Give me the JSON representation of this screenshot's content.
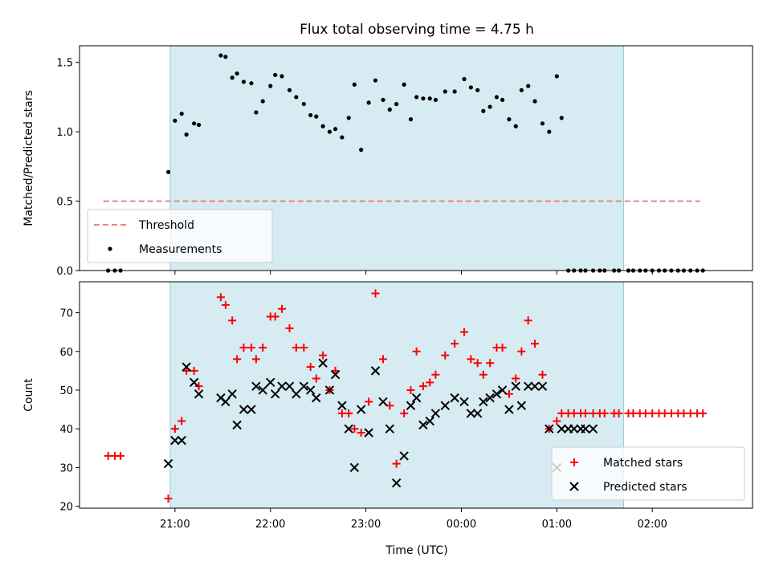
{
  "chart_data": {
    "title": "Flux total observing time = 4.75 h",
    "xlabel": "Time (UTC)",
    "x_ticks": [
      "21:00",
      "22:00",
      "23:00",
      "00:00",
      "01:00",
      "02:00"
    ],
    "x_tick_hours": [
      21,
      22,
      23,
      24,
      25,
      26
    ],
    "xlim": [
      20.0,
      27.05
    ],
    "observing_window": [
      20.95,
      25.7
    ],
    "colors": {
      "window": "#add8e6",
      "threshold": "#f08080",
      "measurements": "#000000",
      "matched": "#ff0000",
      "predicted": "#000000"
    },
    "panels": [
      {
        "type": "scatter",
        "ylabel": "Matched/Predicted stars",
        "ylim": [
          0,
          1.62
        ],
        "y_ticks": [
          0.0,
          0.5,
          1.0,
          1.5
        ],
        "y_tick_labels": [
          "0.0",
          "0.5",
          "1.0",
          "1.5"
        ],
        "legend": {
          "location": "lower-left",
          "entries": [
            "Threshold",
            "Measurements"
          ]
        },
        "threshold": {
          "name": "Threshold",
          "x": [
            20.25,
            26.5
          ],
          "y": 0.5
        },
        "series": [
          {
            "name": "Measurements",
            "x": [
              20.3,
              20.37,
              20.43,
              20.93,
              21.0,
              21.07,
              21.12,
              21.2,
              21.25,
              21.48,
              21.53,
              21.6,
              21.65,
              21.72,
              21.8,
              21.85,
              21.92,
              22.0,
              22.05,
              22.12,
              22.2,
              22.27,
              22.35,
              22.42,
              22.48,
              22.55,
              22.62,
              22.68,
              22.75,
              22.82,
              22.88,
              22.95,
              23.03,
              23.1,
              23.18,
              23.25,
              23.32,
              23.4,
              23.47,
              23.53,
              23.6,
              23.67,
              23.73,
              23.83,
              23.93,
              24.03,
              24.1,
              24.17,
              24.23,
              24.3,
              24.37,
              24.43,
              24.5,
              24.57,
              24.63,
              24.7,
              24.77,
              24.85,
              24.92,
              25.0,
              25.05,
              25.12,
              25.18,
              25.25,
              25.3,
              25.38,
              25.45,
              25.5,
              25.6,
              25.65,
              25.75,
              25.8,
              25.87,
              25.93,
              26.0,
              26.07,
              26.13,
              26.2,
              26.27,
              26.33,
              26.4,
              26.47,
              26.53
            ],
            "y": [
              0,
              0,
              0,
              0.71,
              1.08,
              1.13,
              0.98,
              1.06,
              1.05,
              1.55,
              1.54,
              1.39,
              1.42,
              1.36,
              1.35,
              1.14,
              1.22,
              1.33,
              1.41,
              1.4,
              1.3,
              1.25,
              1.2,
              1.12,
              1.11,
              1.04,
              1.0,
              1.02,
              0.96,
              1.1,
              1.34,
              0.87,
              1.21,
              1.37,
              1.23,
              1.16,
              1.2,
              1.34,
              1.09,
              1.25,
              1.24,
              1.24,
              1.23,
              1.29,
              1.29,
              1.38,
              1.32,
              1.3,
              1.15,
              1.18,
              1.25,
              1.23,
              1.09,
              1.04,
              1.3,
              1.33,
              1.22,
              1.06,
              1.0,
              1.4,
              1.1,
              0,
              0,
              0,
              0,
              0,
              0,
              0,
              0,
              0,
              0,
              0,
              0,
              0,
              0,
              0,
              0,
              0,
              0,
              0,
              0,
              0,
              0
            ]
          }
        ]
      },
      {
        "type": "scatter",
        "ylabel": "Count",
        "ylim": [
          19.5,
          78
        ],
        "y_ticks": [
          20,
          30,
          40,
          50,
          60,
          70
        ],
        "y_tick_labels": [
          "20",
          "30",
          "40",
          "50",
          "60",
          "70"
        ],
        "legend": {
          "location": "lower-right",
          "entries": [
            "Matched stars",
            "Predicted stars"
          ]
        },
        "series": [
          {
            "name": "Matched stars",
            "marker": "plus",
            "x": [
              20.3,
              20.37,
              20.43,
              20.93,
              21.0,
              21.07,
              21.12,
              21.2,
              21.25,
              21.48,
              21.53,
              21.6,
              21.65,
              21.72,
              21.8,
              21.85,
              21.92,
              22.0,
              22.05,
              22.12,
              22.2,
              22.27,
              22.35,
              22.42,
              22.48,
              22.55,
              22.62,
              22.68,
              22.75,
              22.82,
              22.88,
              22.95,
              23.03,
              23.1,
              23.18,
              23.25,
              23.32,
              23.4,
              23.47,
              23.53,
              23.6,
              23.67,
              23.73,
              23.83,
              23.93,
              24.03,
              24.1,
              24.17,
              24.23,
              24.3,
              24.37,
              24.43,
              24.5,
              24.57,
              24.63,
              24.7,
              24.77,
              24.85,
              24.92,
              25.0,
              25.05,
              25.12,
              25.18,
              25.25,
              25.3,
              25.38,
              25.45,
              25.5,
              25.6,
              25.65,
              25.75,
              25.8,
              25.87,
              25.93,
              26.0,
              26.07,
              26.13,
              26.2,
              26.27,
              26.33,
              26.4,
              26.47,
              26.53
            ],
            "y": [
              33,
              33,
              33,
              22,
              40,
              42,
              55,
              55,
              51,
              74,
              72,
              68,
              58,
              61,
              61,
              58,
              61,
              69,
              69,
              71,
              66,
              61,
              61,
              56,
              53,
              59,
              50,
              55,
              44,
              44,
              40,
              39,
              47,
              75,
              58,
              46,
              31,
              44,
              50,
              60,
              51,
              52,
              54,
              59,
              62,
              65,
              58,
              57,
              54,
              57,
              61,
              61,
              49,
              53,
              60,
              68,
              62,
              54,
              40,
              42,
              44,
              44,
              44,
              44,
              44,
              44,
              44,
              44,
              44,
              44,
              44,
              44,
              44,
              44,
              44,
              44,
              44,
              44,
              44,
              44,
              44,
              44,
              44
            ]
          },
          {
            "name": "Predicted stars",
            "marker": "x",
            "x": [
              20.93,
              21.0,
              21.07,
              21.12,
              21.2,
              21.25,
              21.48,
              21.53,
              21.6,
              21.65,
              21.72,
              21.8,
              21.85,
              21.92,
              22.0,
              22.05,
              22.12,
              22.2,
              22.27,
              22.35,
              22.42,
              22.48,
              22.55,
              22.62,
              22.68,
              22.75,
              22.82,
              22.88,
              22.95,
              23.03,
              23.1,
              23.18,
              23.25,
              23.32,
              23.4,
              23.47,
              23.53,
              23.6,
              23.67,
              23.73,
              23.83,
              23.93,
              24.03,
              24.1,
              24.17,
              24.23,
              24.3,
              24.37,
              24.43,
              24.5,
              24.57,
              24.63,
              24.7,
              24.77,
              24.85,
              24.92,
              25.0,
              25.05,
              25.12,
              25.18,
              25.25,
              25.3,
              25.38
            ],
            "y": [
              31,
              37,
              37,
              56,
              52,
              49,
              48,
              47,
              49,
              41,
              45,
              45,
              51,
              50,
              52,
              49,
              51,
              51,
              49,
              51,
              50,
              48,
              57,
              50,
              54,
              46,
              40,
              30,
              45,
              39,
              55,
              47,
              40,
              26,
              33,
              46,
              48,
              41,
              42,
              44,
              46,
              48,
              47,
              44,
              44,
              47,
              48,
              49,
              50,
              45,
              51,
              46,
              51,
              51,
              51,
              40,
              30,
              40,
              40,
              40,
              40,
              40,
              40
            ]
          }
        ]
      }
    ]
  }
}
